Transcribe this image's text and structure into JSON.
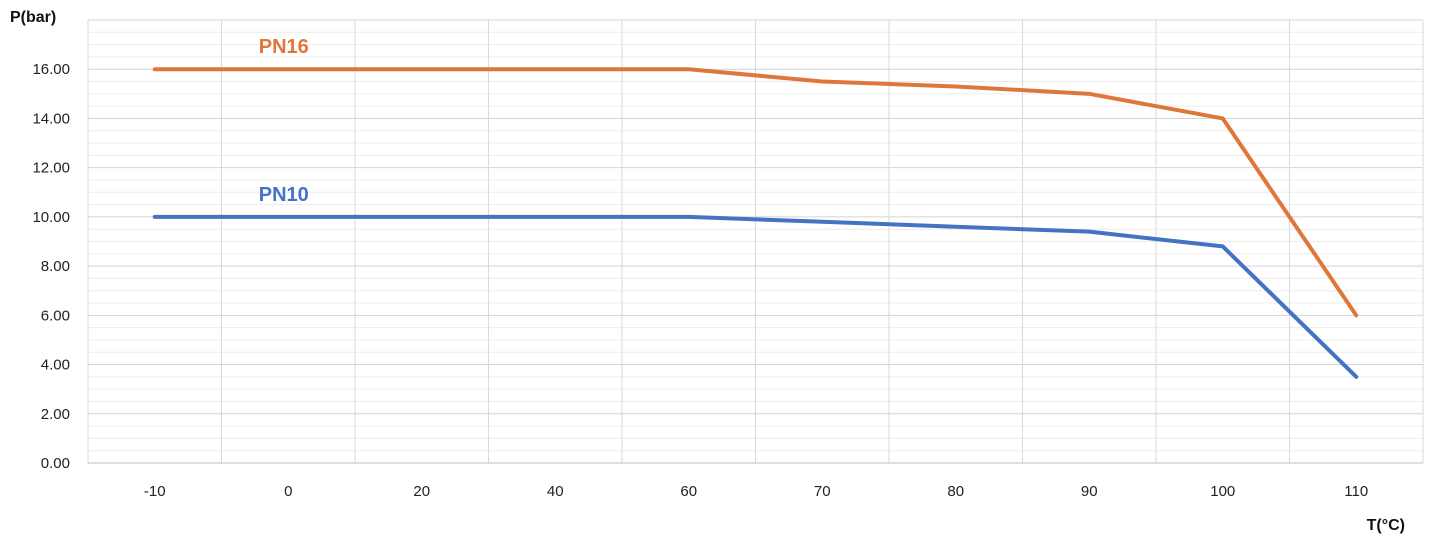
{
  "chart_data": {
    "type": "line",
    "title": "",
    "ylabel": "P(bar)",
    "xlabel": "T(°C)",
    "categories": [
      "-10",
      "0",
      "20",
      "40",
      "60",
      "70",
      "80",
      "90",
      "100",
      "110"
    ],
    "yticks": [
      "0.00",
      "2.00",
      "4.00",
      "6.00",
      "8.00",
      "10.00",
      "12.00",
      "14.00",
      "16.00"
    ],
    "ylim": [
      0,
      18
    ],
    "grid": true,
    "series": [
      {
        "name": "PN16",
        "color": "#E0773A",
        "values": [
          16,
          16,
          16,
          16,
          16,
          15.5,
          15.3,
          15,
          14,
          6
        ]
      },
      {
        "name": "PN10",
        "color": "#4472C4",
        "values": [
          10,
          10,
          10,
          10,
          10,
          9.8,
          9.6,
          9.4,
          8.8,
          3.5
        ]
      }
    ]
  }
}
